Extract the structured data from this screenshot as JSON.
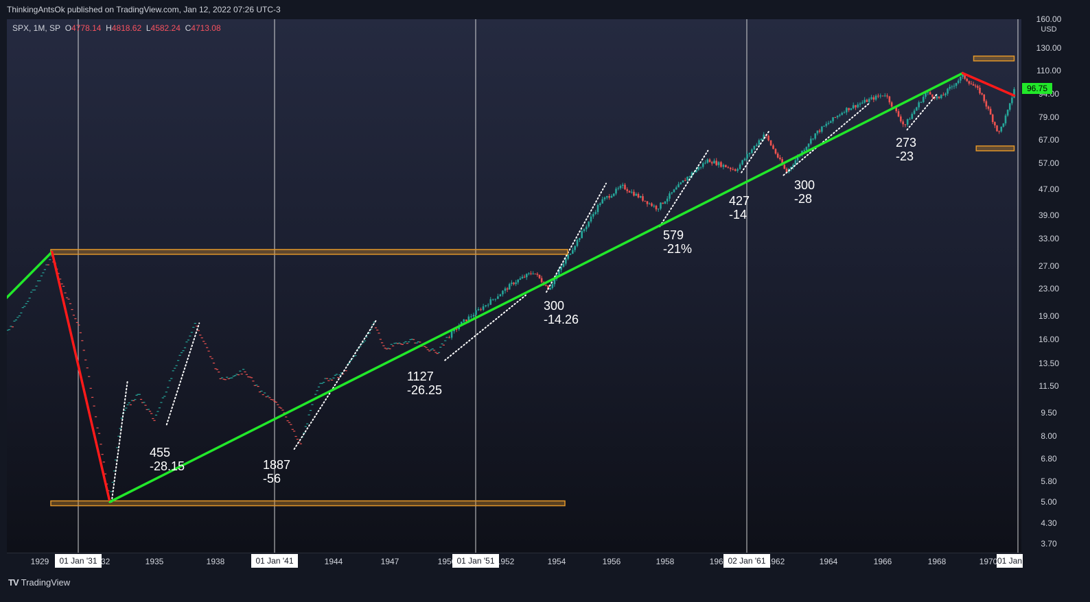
{
  "header": {
    "publisher": "ThinkingAntsOk published on TradingView.com, Jan 12, 2022 07:26 UTC-3"
  },
  "legend": {
    "symbol": "SPX, 1M, SP",
    "o_label": "O",
    "o_value": "4778.14",
    "h_label": "H",
    "h_value": "4818.62",
    "l_label": "L",
    "l_value": "4582.24",
    "c_label": "C",
    "c_value": "4713.08"
  },
  "footer": {
    "brand": "TradingView"
  },
  "colors": {
    "up": "#26a69a",
    "down": "#ef5350",
    "trend_up": "#22e82a",
    "trend_down": "#ff1a1a",
    "zone": "#e0952a"
  },
  "chart_data": {
    "type": "candlestick",
    "y_scale": "log",
    "ylabel": "USD",
    "y_ticks": [
      "160.00",
      "130.00",
      "110.00",
      "94.00",
      "79.00",
      "67.00",
      "57.00",
      "47.00",
      "39.00",
      "33.00",
      "27.00",
      "23.00",
      "19.00",
      "16.00",
      "13.50",
      "11.50",
      "9.50",
      "8.00",
      "6.80",
      "5.80",
      "5.00",
      "4.30",
      "3.70"
    ],
    "x_ticks": [
      "1929",
      "1932",
      "1935",
      "1938",
      "1944",
      "1947",
      "1950",
      "1952",
      "1954",
      "1956",
      "1958",
      "1960",
      "1962",
      "1964",
      "1966",
      "1968",
      "1970"
    ],
    "vlines": [
      "01 Jan '31",
      "01 Jan '41",
      "01 Jan '51",
      "02 Jan '61",
      "01 Jan"
    ],
    "last_price": "96.75",
    "annotations": [
      {
        "line1": "455",
        "line2": "-28.15"
      },
      {
        "line1": "1887",
        "line2": "-56"
      },
      {
        "line1": "1127",
        "line2": "-26.25"
      },
      {
        "line1": "300",
        "line2": "-14.26"
      },
      {
        "line1": "579",
        "line2": "-21%"
      },
      {
        "line1": "427",
        "line2": "-14"
      },
      {
        "line1": "300",
        "line2": "-28"
      },
      {
        "line1": "273",
        "line2": "-23"
      }
    ],
    "trendlines": [
      {
        "color": "green",
        "from": {
          "year": 1926.5,
          "price": 19
        },
        "to": {
          "year": 1929.6,
          "price": 30
        }
      },
      {
        "color": "red",
        "from": {
          "year": 1929.6,
          "price": 30
        },
        "to": {
          "year": 1932.5,
          "price": 5
        }
      },
      {
        "color": "green",
        "from": {
          "year": 1932.5,
          "price": 5
        },
        "to": {
          "year": 1969.0,
          "price": 108
        }
      },
      {
        "color": "red",
        "from": {
          "year": 1969.0,
          "price": 108
        },
        "to": {
          "year": 1971.0,
          "price": 92
        }
      }
    ],
    "zones": [
      {
        "from": 1929,
        "to": 1954.4,
        "price": 30
      },
      {
        "from": 1929,
        "to": 1954.3,
        "price": 4.95
      },
      {
        "from": 1969.0,
        "to": 1971.0,
        "price": 120
      },
      {
        "from": 1969.1,
        "to": 1971.0,
        "price": 63
      }
    ],
    "anchors": [
      [
        1926.5,
        14
      ],
      [
        1928.0,
        19
      ],
      [
        1929.6,
        29
      ],
      [
        1931.0,
        17
      ],
      [
        1932.5,
        5
      ],
      [
        1933.2,
        9.5
      ],
      [
        1934.1,
        10.8
      ],
      [
        1935.0,
        9
      ],
      [
        1936.0,
        13
      ],
      [
        1937.0,
        18
      ],
      [
        1938.3,
        12
      ],
      [
        1939.5,
        12.8
      ],
      [
        1940.3,
        11
      ],
      [
        1941.4,
        9.8
      ],
      [
        1942.3,
        7.5
      ],
      [
        1943.3,
        11.8
      ],
      [
        1944.5,
        12.5
      ],
      [
        1946.2,
        18
      ],
      [
        1946.7,
        15
      ],
      [
        1948.2,
        16
      ],
      [
        1949.5,
        14.5
      ],
      [
        1950.5,
        18
      ],
      [
        1952.3,
        24
      ],
      [
        1953.1,
        26
      ],
      [
        1953.7,
        23
      ],
      [
        1954.5,
        30
      ],
      [
        1955.6,
        43
      ],
      [
        1956.4,
        48
      ],
      [
        1957.7,
        41
      ],
      [
        1958.8,
        51
      ],
      [
        1959.6,
        58
      ],
      [
        1960.6,
        54
      ],
      [
        1961.6,
        70
      ],
      [
        1962.4,
        53
      ],
      [
        1963.5,
        70
      ],
      [
        1964.6,
        83
      ],
      [
        1965.6,
        90
      ],
      [
        1966.1,
        93
      ],
      [
        1966.8,
        74
      ],
      [
        1967.6,
        94
      ],
      [
        1968.1,
        90
      ],
      [
        1969.0,
        106
      ],
      [
        1969.7,
        94
      ],
      [
        1970.4,
        70
      ],
      [
        1970.8,
        84
      ],
      [
        1971.0,
        96.75
      ]
    ]
  }
}
